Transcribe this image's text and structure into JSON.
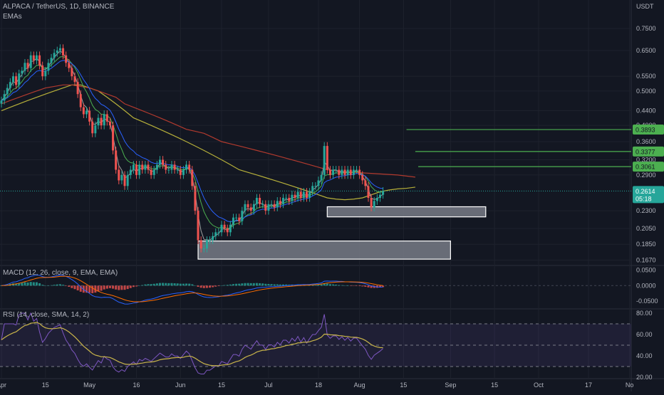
{
  "header": {
    "symbol_line": "ALPACA / TetherUS, 1D, BINANCE",
    "indicator": "EMAs",
    "currency": "USDT"
  },
  "colors": {
    "background": "#131722",
    "grid": "#1e222d",
    "up": "#26a69a",
    "down": "#ef5350",
    "text": "#b2b5be",
    "ema_fast": "#9e9e9e",
    "ema_mid1": "#4caf50",
    "ema_mid2": "#2962ff",
    "ema_slow1": "#b7b03a",
    "ema_slow2": "#b23a2e",
    "level_line": "#4caf50",
    "macd_line": "#2962ff",
    "signal_line": "#ff6d00",
    "rsi_line": "#7e57c2",
    "rsi_ma": "#c9b54a"
  },
  "chart_data": [
    {
      "type": "candlestick",
      "title": "ALPACA / TetherUS, 1D, BINANCE",
      "y_scale": "log",
      "ylim": [
        0.162,
        0.8
      ],
      "y_ticks": [
        "0.7500",
        "0.6500",
        "0.5500",
        "0.5000",
        "0.4400",
        "0.4000",
        "0.3600",
        "0.3200",
        "0.2900",
        "0.2300",
        "0.2050",
        "0.1850",
        "0.1670"
      ],
      "x_ticks": [
        "Apr",
        "15",
        "May",
        "16",
        "Jun",
        "15",
        "Jul",
        "18",
        "Aug",
        "15",
        "Sep",
        "15",
        "Oct",
        "17",
        "No"
      ],
      "x_tick_index": [
        0,
        15,
        30,
        46,
        61,
        75,
        91,
        108,
        122,
        137,
        153,
        168,
        183,
        200,
        214
      ],
      "last_price": "0.2614",
      "countdown": "05:18",
      "price_levels": [
        {
          "label": "0.3893",
          "value": 0.3893,
          "from_index": 138
        },
        {
          "label": "0.3377",
          "value": 0.3377,
          "from_index": 141
        },
        {
          "label": "0.3061",
          "value": 0.3061,
          "from_index": 142
        }
      ],
      "zones": [
        {
          "low": 0.221,
          "high": 0.236,
          "from_index": 111,
          "to_index": 165
        },
        {
          "low": 0.168,
          "high": 0.189,
          "from_index": 67,
          "to_index": 153
        }
      ],
      "close_series": [
        0.47,
        0.49,
        0.51,
        0.53,
        0.55,
        0.52,
        0.56,
        0.57,
        0.6,
        0.58,
        0.63,
        0.61,
        0.63,
        0.59,
        0.55,
        0.57,
        0.6,
        0.62,
        0.64,
        0.65,
        0.66,
        0.63,
        0.6,
        0.58,
        0.55,
        0.53,
        0.49,
        0.45,
        0.43,
        0.44,
        0.41,
        0.38,
        0.4,
        0.42,
        0.4,
        0.43,
        0.41,
        0.4,
        0.34,
        0.3,
        0.28,
        0.29,
        0.27,
        0.29,
        0.3,
        0.31,
        0.29,
        0.31,
        0.3,
        0.31,
        0.3,
        0.29,
        0.3,
        0.31,
        0.32,
        0.31,
        0.3,
        0.3,
        0.31,
        0.3,
        0.3,
        0.29,
        0.3,
        0.31,
        0.3,
        0.27,
        0.23,
        0.19,
        0.18,
        0.18,
        0.19,
        0.19,
        0.195,
        0.2,
        0.2,
        0.21,
        0.205,
        0.2,
        0.21,
        0.22,
        0.22,
        0.215,
        0.23,
        0.24,
        0.235,
        0.23,
        0.24,
        0.25,
        0.24,
        0.24,
        0.23,
        0.24,
        0.24,
        0.235,
        0.245,
        0.24,
        0.25,
        0.25,
        0.245,
        0.255,
        0.25,
        0.26,
        0.25,
        0.26,
        0.25,
        0.26,
        0.27,
        0.27,
        0.28,
        0.29,
        0.35,
        0.3,
        0.29,
        0.3,
        0.3,
        0.29,
        0.3,
        0.29,
        0.3,
        0.29,
        0.3,
        0.3,
        0.29,
        0.28,
        0.27,
        0.25,
        0.235,
        0.245,
        0.25,
        0.255,
        0.2614
      ],
      "ema_series": [
        {
          "name": "EMA slow 1",
          "values": [
            0.44,
            0.45,
            0.46,
            0.47,
            0.48,
            0.49,
            0.5,
            0.51,
            0.52,
            0.52,
            0.51,
            0.5,
            0.48,
            0.46,
            0.44,
            0.42,
            0.41,
            0.4,
            0.39,
            0.38,
            0.37,
            0.36,
            0.35,
            0.34,
            0.33,
            0.32,
            0.31,
            0.3,
            0.295,
            0.29,
            0.285,
            0.28,
            0.275,
            0.27,
            0.265,
            0.26,
            0.255,
            0.25,
            0.248,
            0.247,
            0.248,
            0.25,
            0.255,
            0.26,
            0.263,
            0.265,
            0.266,
            0.268
          ]
        },
        {
          "name": "EMA slow 2",
          "values": [
            0.46,
            0.47,
            0.48,
            0.49,
            0.5,
            0.51,
            0.515,
            0.52,
            0.52,
            0.515,
            0.51,
            0.5,
            0.49,
            0.48,
            0.46,
            0.45,
            0.44,
            0.43,
            0.42,
            0.41,
            0.4,
            0.39,
            0.385,
            0.38,
            0.37,
            0.36,
            0.355,
            0.35,
            0.345,
            0.34,
            0.335,
            0.33,
            0.325,
            0.32,
            0.315,
            0.31,
            0.305,
            0.3,
            0.298,
            0.296,
            0.295,
            0.294,
            0.293,
            0.292,
            0.291,
            0.29,
            0.288,
            0.286
          ]
        }
      ]
    },
    {
      "type": "line",
      "title": "MACD (12, 26, close, 9, EMA, EMA)",
      "y_ticks": [
        "0.0500",
        "0.0000",
        "-0.0500"
      ],
      "ylim": [
        -0.07,
        0.06
      ]
    },
    {
      "type": "line",
      "title": "RSI (14, close, SMA, 14, 2)",
      "y_ticks": [
        "80.00",
        "60.00",
        "40.00",
        "20.00"
      ],
      "ylim": [
        20,
        82
      ],
      "bands": [
        70,
        50,
        30
      ]
    }
  ]
}
